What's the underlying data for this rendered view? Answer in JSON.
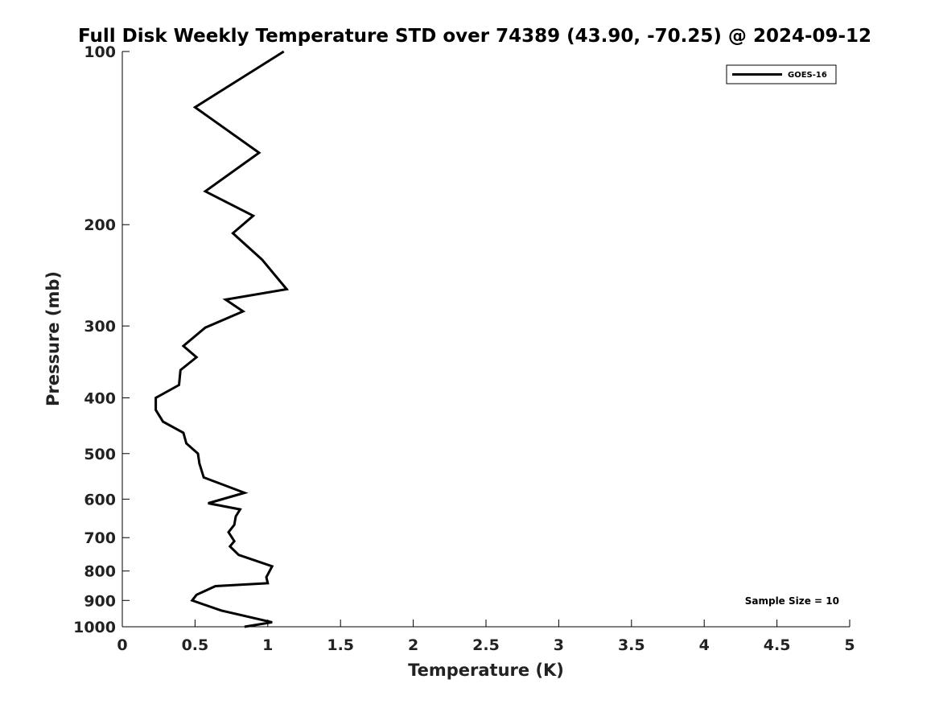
{
  "chart_data": {
    "type": "line",
    "title": "Full Disk Weekly Temperature STD over 74389 (43.90, -70.25) @ 2024-09-12",
    "xlabel": "Temperature (K)",
    "ylabel": "Pressure (mb)",
    "xlim": [
      0,
      5
    ],
    "ylim": [
      100,
      1000
    ],
    "y_scale": "log",
    "y_reversed": true,
    "xticks": [
      "0",
      "0.5",
      "1",
      "1.5",
      "2",
      "2.5",
      "3",
      "3.5",
      "4",
      "4.5",
      "5"
    ],
    "yticks": [
      "100",
      "200",
      "300",
      "400",
      "500",
      "600",
      "700",
      "800",
      "900",
      "1000"
    ],
    "grid": false,
    "legend_position": "top-right",
    "series": [
      {
        "name": "GOES-16",
        "color": "#000000",
        "points": [
          [
            1.11,
            100
          ],
          [
            0.5,
            125
          ],
          [
            0.94,
            150
          ],
          [
            0.57,
            175
          ],
          [
            0.9,
            193
          ],
          [
            0.76,
            207
          ],
          [
            0.96,
            230
          ],
          [
            1.13,
            259
          ],
          [
            0.71,
            270
          ],
          [
            0.83,
            283
          ],
          [
            0.57,
            302
          ],
          [
            0.42,
            325
          ],
          [
            0.51,
            340
          ],
          [
            0.4,
            358
          ],
          [
            0.39,
            380
          ],
          [
            0.23,
            400
          ],
          [
            0.23,
            420
          ],
          [
            0.28,
            440
          ],
          [
            0.42,
            460
          ],
          [
            0.44,
            480
          ],
          [
            0.52,
            500
          ],
          [
            0.53,
            520
          ],
          [
            0.56,
            550
          ],
          [
            0.84,
            585
          ],
          [
            0.59,
            610
          ],
          [
            0.81,
            625
          ],
          [
            0.78,
            643
          ],
          [
            0.77,
            665
          ],
          [
            0.73,
            685
          ],
          [
            0.77,
            710
          ],
          [
            0.74,
            725
          ],
          [
            0.8,
            750
          ],
          [
            1.03,
            785
          ],
          [
            0.99,
            820
          ],
          [
            1.0,
            840
          ],
          [
            0.64,
            850
          ],
          [
            0.51,
            880
          ],
          [
            0.48,
            900
          ],
          [
            0.68,
            937
          ],
          [
            1.03,
            982
          ],
          [
            0.84,
            1000
          ]
        ]
      }
    ],
    "annotation": "Sample Size = 10"
  }
}
